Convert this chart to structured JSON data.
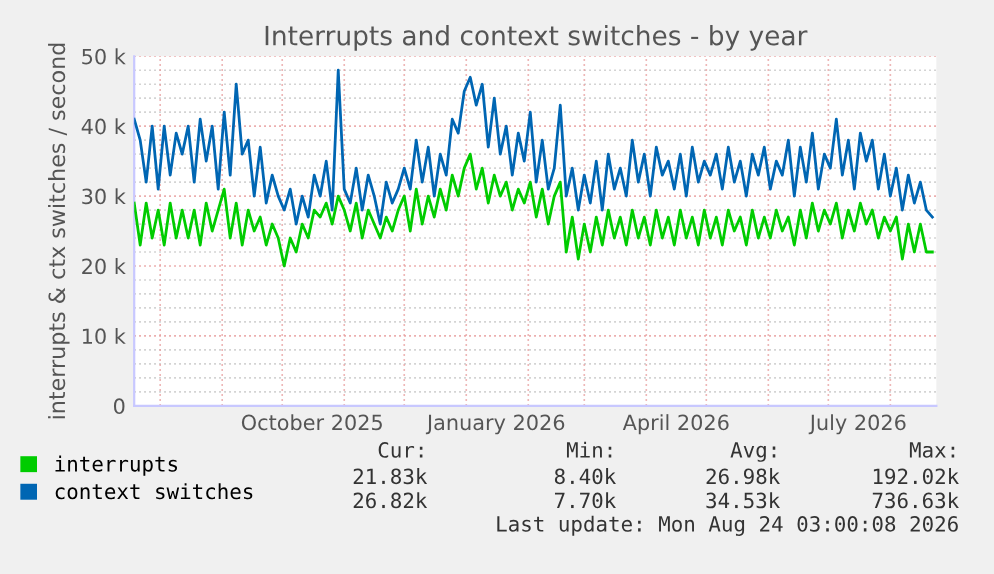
{
  "chart_data": {
    "type": "line",
    "title": "Interrupts and context switches - by year",
    "ylabel": "interrupts & ctx switches / second",
    "x": [
      "2025-07-19",
      "2025-07-22",
      "2025-07-25",
      "2025-07-28",
      "2025-07-31",
      "2025-08-03",
      "2025-08-06",
      "2025-08-09",
      "2025-08-12",
      "2025-08-15",
      "2025-08-18",
      "2025-08-21",
      "2025-08-24",
      "2025-08-27",
      "2025-08-30",
      "2025-09-02",
      "2025-09-05",
      "2025-09-08",
      "2025-09-11",
      "2025-09-14",
      "2025-09-17",
      "2025-09-20",
      "2025-09-23",
      "2025-09-26",
      "2025-09-29",
      "2025-10-02",
      "2025-10-05",
      "2025-10-08",
      "2025-10-11",
      "2025-10-14",
      "2025-10-17",
      "2025-10-20",
      "2025-10-23",
      "2025-10-26",
      "2025-10-29",
      "2025-11-01",
      "2025-11-04",
      "2025-11-07",
      "2025-11-10",
      "2025-11-13",
      "2025-11-16",
      "2025-11-19",
      "2025-11-22",
      "2025-11-25",
      "2025-11-28",
      "2025-12-01",
      "2025-12-04",
      "2025-12-07",
      "2025-12-10",
      "2025-12-13",
      "2025-12-16",
      "2025-12-19",
      "2025-12-22",
      "2025-12-25",
      "2025-12-28",
      "2025-12-31",
      "2026-01-03",
      "2026-01-06",
      "2026-01-09",
      "2026-01-12",
      "2026-01-15",
      "2026-01-18",
      "2026-01-21",
      "2026-01-24",
      "2026-01-27",
      "2026-01-30",
      "2026-02-02",
      "2026-02-05",
      "2026-02-08",
      "2026-02-11",
      "2026-02-14",
      "2026-02-17",
      "2026-02-20",
      "2026-02-23",
      "2026-02-26",
      "2026-03-01",
      "2026-03-04",
      "2026-03-07",
      "2026-03-10",
      "2026-03-13",
      "2026-03-16",
      "2026-03-19",
      "2026-03-22",
      "2026-03-25",
      "2026-03-28",
      "2026-03-31",
      "2026-04-03",
      "2026-04-06",
      "2026-04-09",
      "2026-04-12",
      "2026-04-15",
      "2026-04-18",
      "2026-04-21",
      "2026-04-24",
      "2026-04-27",
      "2026-04-30",
      "2026-05-03",
      "2026-05-06",
      "2026-05-09",
      "2026-05-12",
      "2026-05-15",
      "2026-05-18",
      "2026-05-21",
      "2026-05-24",
      "2026-05-27",
      "2026-05-30",
      "2026-06-02",
      "2026-06-05",
      "2026-06-08",
      "2026-06-11",
      "2026-06-14",
      "2026-06-17",
      "2026-06-20",
      "2026-06-23",
      "2026-06-26",
      "2026-06-29",
      "2026-07-02",
      "2026-07-05",
      "2026-07-08",
      "2026-07-11",
      "2026-07-14",
      "2026-07-17",
      "2026-07-20",
      "2026-07-23",
      "2026-07-26",
      "2026-07-29",
      "2026-08-01",
      "2026-08-04",
      "2026-08-07",
      "2026-08-10",
      "2026-08-13",
      "2026-08-16",
      "2026-08-19",
      "2026-08-22"
    ],
    "series": [
      {
        "name": "interrupts",
        "color": "#00cc00",
        "values": [
          29000,
          23000,
          29000,
          24000,
          28000,
          23000,
          29000,
          24000,
          28000,
          24000,
          28000,
          23000,
          29000,
          25000,
          28000,
          31000,
          24000,
          29000,
          23000,
          28000,
          25000,
          27000,
          23000,
          26000,
          24000,
          20000,
          24000,
          22000,
          26000,
          24000,
          28000,
          27000,
          29000,
          26000,
          30000,
          28000,
          25000,
          29000,
          24000,
          28000,
          26000,
          24000,
          27000,
          25000,
          28000,
          30000,
          25000,
          31000,
          26000,
          30000,
          27000,
          31000,
          28000,
          33000,
          30000,
          34000,
          36000,
          31000,
          34000,
          29000,
          33000,
          30000,
          32000,
          28000,
          31000,
          29000,
          32000,
          27000,
          31000,
          26000,
          30000,
          32000,
          22000,
          27000,
          21000,
          26000,
          22000,
          27000,
          23000,
          28000,
          24000,
          27000,
          23000,
          28000,
          24000,
          27000,
          23000,
          28000,
          24000,
          27000,
          23000,
          28000,
          24000,
          27000,
          23000,
          28000,
          24000,
          27000,
          23000,
          28000,
          25000,
          27000,
          23000,
          28000,
          24000,
          27000,
          24000,
          28000,
          25000,
          27000,
          23000,
          28000,
          24000,
          29000,
          25000,
          28000,
          26000,
          29000,
          24000,
          28000,
          25000,
          29000,
          26000,
          28000,
          24000,
          27000,
          25000,
          27000,
          21000,
          26000,
          22000,
          26000,
          22000,
          22000
        ]
      },
      {
        "name": "context switches",
        "color": "#0066b3",
        "values": [
          41000,
          38000,
          32000,
          40000,
          31000,
          40000,
          33000,
          39000,
          36000,
          40000,
          32000,
          41000,
          35000,
          40000,
          31000,
          42000,
          33000,
          46000,
          36000,
          38000,
          30000,
          37000,
          29000,
          33000,
          30000,
          28000,
          31000,
          26000,
          30000,
          27000,
          33000,
          30000,
          35000,
          28000,
          48000,
          31000,
          29000,
          34000,
          28000,
          33000,
          30000,
          26000,
          32000,
          29000,
          31000,
          34000,
          31000,
          38000,
          32000,
          37000,
          30000,
          36000,
          33000,
          41000,
          39000,
          45000,
          47000,
          43000,
          46000,
          37000,
          44000,
          36000,
          40000,
          33000,
          39000,
          35000,
          42000,
          32000,
          38000,
          31000,
          34000,
          43000,
          30000,
          34000,
          28000,
          33000,
          29000,
          35000,
          28000,
          36000,
          31000,
          34000,
          30000,
          38000,
          32000,
          36000,
          30000,
          37000,
          33000,
          35000,
          31000,
          36000,
          30000,
          37000,
          32000,
          35000,
          33000,
          36000,
          31000,
          37000,
          32000,
          35000,
          30000,
          36000,
          33000,
          37000,
          31000,
          35000,
          33000,
          38000,
          30000,
          37000,
          32000,
          39000,
          31000,
          36000,
          34000,
          41000,
          33000,
          38000,
          31000,
          39000,
          35000,
          38000,
          31000,
          36000,
          30000,
          34000,
          28000,
          33000,
          29000,
          32000,
          28000,
          27000
        ]
      }
    ],
    "xlim": [
      "2025-07-19",
      "2026-08-24"
    ],
    "xticks": [
      {
        "value": "2025-10-16",
        "label": "October 2025"
      },
      {
        "value": "2026-01-16",
        "label": "January 2026"
      },
      {
        "value": "2026-04-16",
        "label": "April 2026"
      },
      {
        "value": "2026-07-16",
        "label": "July 2026"
      }
    ],
    "ylim": [
      0,
      50000
    ],
    "yticks": [
      {
        "value": 0,
        "label": "0"
      },
      {
        "value": 10000,
        "label": "10 k"
      },
      {
        "value": 20000,
        "label": "20 k"
      },
      {
        "value": 30000,
        "label": "30 k"
      },
      {
        "value": 40000,
        "label": "40 k"
      },
      {
        "value": 50000,
        "label": "50 k"
      }
    ],
    "grid": true,
    "legend": "bottom",
    "marker": "none",
    "line_style": "solid",
    "annotations": [
      "Cur:",
      "Min:",
      "Avg:",
      "Max:",
      "21.83k",
      "8.40k",
      "26.98k",
      "192.02k",
      "26.82k",
      "7.70k",
      "34.53k",
      "736.63k",
      "Last update: Mon Aug 24 03:00:08 2026"
    ]
  }
}
